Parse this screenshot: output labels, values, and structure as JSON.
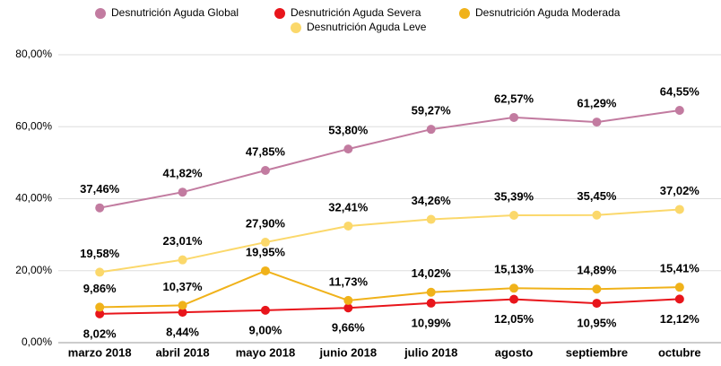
{
  "chart_data": {
    "type": "line",
    "categories": [
      "marzo 2018",
      "abril 2018",
      "mayo 2018",
      "junio 2018",
      "julio 2018",
      "agosto",
      "septiembre",
      "octubre"
    ],
    "series": [
      {
        "name": "Desnutrición Aguda Global",
        "color": "#c27ba0",
        "values": [
          37.46,
          41.82,
          47.85,
          53.8,
          59.27,
          62.57,
          61.29,
          64.55
        ],
        "value_labels": [
          "37,46%",
          "41,82%",
          "47,85%",
          "53,80%",
          "59,27%",
          "62,57%",
          "61,29%",
          "64,55%"
        ]
      },
      {
        "name": "Desnutrición Aguda Severa",
        "color": "#e8151b",
        "values": [
          8.02,
          8.44,
          9.0,
          9.66,
          10.99,
          12.05,
          10.95,
          12.12
        ],
        "value_labels": [
          "8,02%",
          "8,44%",
          "9,00%",
          "9,66%",
          "10,99%",
          "12,05%",
          "10,95%",
          "12,12%"
        ]
      },
      {
        "name": "Desnutrición Aguda Moderada",
        "color": "#f0b21a",
        "values": [
          9.86,
          10.37,
          19.95,
          11.73,
          14.02,
          15.13,
          14.89,
          15.41
        ],
        "value_labels": [
          "9,86%",
          "10,37%",
          "19,95%",
          "11,73%",
          "14,02%",
          "15,13%",
          "14,89%",
          "15,41%"
        ]
      },
      {
        "name": "Desnutrición Aguda Leve",
        "color": "#fbd86b",
        "values": [
          19.58,
          23.01,
          27.9,
          32.41,
          34.26,
          35.39,
          35.45,
          37.02
        ],
        "value_labels": [
          "19,58%",
          "23,01%",
          "27,90%",
          "32,41%",
          "34,26%",
          "35,39%",
          "35,45%",
          "37,02%"
        ]
      }
    ],
    "ylim": [
      0,
      80
    ],
    "yticks": [
      {
        "value": 0,
        "label": "0,00%"
      },
      {
        "value": 20,
        "label": "20,00%"
      },
      {
        "value": 40,
        "label": "40,00%"
      },
      {
        "value": 60,
        "label": "60,00%"
      },
      {
        "value": 80,
        "label": "80,00%"
      }
    ],
    "grid": true
  }
}
